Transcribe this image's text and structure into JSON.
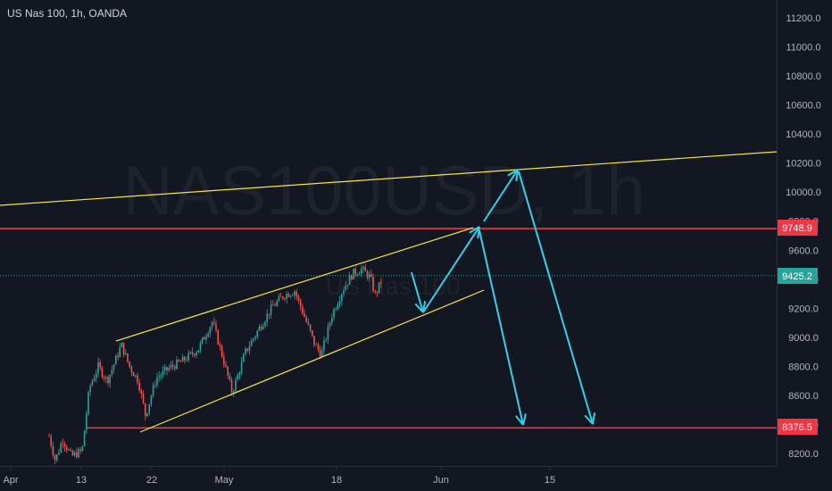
{
  "header": {
    "title": "US Nas 100, 1h, OANDA"
  },
  "watermark": {
    "main": "NAS100USD, 1h",
    "sub": "US Nas 100"
  },
  "price_axis": {
    "ticks": [
      "11200.0",
      "11000.0",
      "10800.0",
      "10600.0",
      "10400.0",
      "10200.0",
      "10000.0",
      "9800.0",
      "9600.0",
      "9400.0",
      "9200.0",
      "9000.0",
      "8800.0",
      "8600.0",
      "8400.0",
      "8200.0"
    ],
    "tick_values": [
      11200,
      11000,
      10800,
      10600,
      10400,
      10200,
      10000,
      9800,
      9600,
      9400,
      9200,
      9000,
      8800,
      8600,
      8400,
      8200
    ]
  },
  "time_axis": {
    "ticks": [
      "Apr",
      "13",
      "22",
      "May",
      "18",
      "Jun",
      "15"
    ]
  },
  "price_labels": {
    "resistance": {
      "text": "9748.9",
      "value": 9748.9,
      "color": "#f23645"
    },
    "current": {
      "text": "9425.2",
      "value": 9425.2,
      "color": "#26a69a"
    },
    "support": {
      "text": "8376.5",
      "value": 8376.5,
      "color": "#f23645"
    }
  },
  "colors": {
    "background": "#131722",
    "axis_text": "#b2b5be",
    "up_candle": "#26a69a",
    "down_candle": "#ef5350",
    "trendline": "#f5e642",
    "horizontal_level": "#f23645",
    "arrow": "#34d1e6",
    "current_price_line": "#26a69a"
  }
}
